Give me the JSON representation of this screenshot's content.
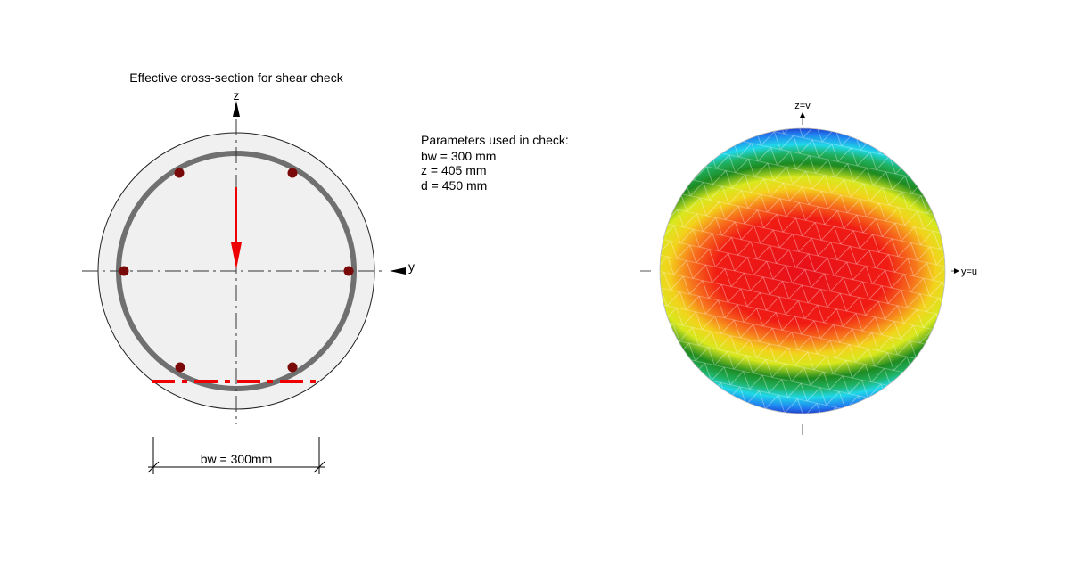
{
  "left_panel": {
    "title": "Effective cross-section for shear check",
    "axis_z": "z",
    "axis_y": "y",
    "dimension_label": "bw = 300mm"
  },
  "parameters": {
    "heading": "Parameters used in check:",
    "lines": [
      "bw = 300 mm",
      "z = 405 mm",
      "d = 450 mm"
    ]
  },
  "right_panel": {
    "axis_z": "z=v",
    "axis_y": "y=u"
  }
}
